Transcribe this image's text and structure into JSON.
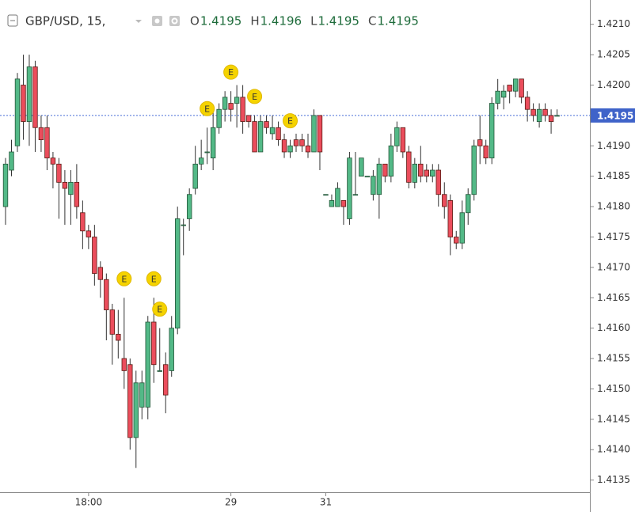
{
  "chart_data": {
    "type": "candlestick",
    "title": "GBP/USD, 15,",
    "ohlc_header": [
      {
        "label": "O",
        "value": 1.4195
      },
      {
        "label": "H",
        "value": 1.4196
      },
      {
        "label": "L",
        "value": 1.4195
      },
      {
        "label": "C",
        "value": 1.4195
      }
    ],
    "categories": [
      null,
      null,
      null,
      null,
      null,
      null,
      null,
      null,
      null,
      null,
      null,
      null,
      null,
      null,
      "18:00",
      null,
      null,
      null,
      null,
      null,
      null,
      null,
      null,
      null,
      null,
      null,
      null,
      null,
      null,
      null,
      null,
      null,
      null,
      null,
      null,
      null,
      null,
      null,
      "29",
      null,
      null,
      null,
      null,
      null,
      null,
      null,
      null,
      null,
      null,
      null,
      null,
      null,
      null,
      null,
      "31",
      null,
      null,
      null,
      null,
      null,
      null,
      null,
      null,
      null,
      null,
      null,
      null,
      null,
      null,
      null,
      null,
      null,
      null,
      null,
      null,
      null,
      null,
      null,
      null,
      null,
      null,
      null,
      null,
      null,
      null,
      null,
      null,
      null,
      null,
      null,
      null,
      null,
      null,
      null
    ],
    "open": [
      1.418,
      1.4186,
      1.419,
      1.42,
      1.4194,
      1.4203,
      1.4193,
      1.4193,
      1.4188,
      1.4187,
      1.4184,
      1.4182,
      1.4184,
      1.4179,
      1.4176,
      1.4175,
      1.417,
      1.4168,
      1.4163,
      1.4159,
      1.4155,
      1.4154,
      1.4142,
      1.4147,
      1.4147,
      1.4161,
      1.4153,
      1.4154,
      1.4153,
      1.416,
      1.4177,
      1.4178,
      1.4183,
      1.4187,
      1.4189,
      1.4188,
      1.4193,
      1.4196,
      1.4197,
      1.4197,
      1.4198,
      1.4195,
      1.4194,
      1.4189,
      1.4194,
      1.4192,
      1.4193,
      1.4191,
      1.4189,
      1.4191,
      1.4191,
      1.419,
      1.4189,
      1.4195,
      1.4182,
      1.418,
      1.418,
      1.4181,
      1.4178,
      1.4182,
      1.4185,
      1.4185,
      1.4182,
      1.4182,
      1.4187,
      1.4185,
      1.419,
      1.4193,
      1.4189,
      1.4184,
      1.4187,
      1.4186,
      1.4185,
      1.4186,
      1.4182,
      1.4181,
      1.4175,
      1.4174,
      1.4179,
      1.4182,
      1.4191,
      1.419,
      1.4188,
      1.4197,
      1.4198,
      1.42,
      1.4199,
      1.4201,
      1.4198,
      1.4196,
      1.4194,
      1.4196,
      1.4195,
      1.4195
    ],
    "high": [
      1.4188,
      1.4191,
      1.4202,
      1.4205,
      1.4205,
      1.4204,
      1.4195,
      1.4195,
      1.4189,
      1.4188,
      1.4186,
      1.4186,
      1.4187,
      1.4181,
      1.4177,
      1.4177,
      1.4171,
      1.4169,
      1.4164,
      1.4163,
      1.4165,
      1.4155,
      1.4153,
      1.4153,
      1.4162,
      1.4165,
      1.416,
      1.4156,
      1.4162,
      1.418,
      1.4178,
      1.4183,
      1.419,
      1.4191,
      1.4193,
      1.4196,
      1.4197,
      1.4199,
      1.4199,
      1.42,
      1.42,
      1.4195,
      1.4195,
      1.4195,
      1.4195,
      1.4195,
      1.4194,
      1.4192,
      1.4191,
      1.4192,
      1.4192,
      1.4192,
      1.4196,
      1.4195,
      1.4182,
      1.4182,
      1.4184,
      1.4181,
      1.4189,
      1.4189,
      1.4188,
      1.4185,
      1.4186,
      1.4188,
      1.4187,
      1.4192,
      1.4194,
      1.4193,
      1.419,
      1.4188,
      1.419,
      1.4187,
      1.4187,
      1.4187,
      1.4184,
      1.4182,
      1.4176,
      1.4181,
      1.4183,
      1.4191,
      1.4195,
      1.4191,
      1.4198,
      1.4201,
      1.42,
      1.42,
      1.4201,
      1.4201,
      1.4199,
      1.4197,
      1.4197,
      1.4197,
      1.4196,
      1.4196
    ],
    "low": [
      1.4177,
      1.4185,
      1.4189,
      1.4191,
      1.419,
      1.4189,
      1.4189,
      1.4186,
      1.4183,
      1.4178,
      1.4177,
      1.4177,
      1.4178,
      1.4173,
      1.4173,
      1.4167,
      1.4165,
      1.4158,
      1.4154,
      1.4155,
      1.415,
      1.414,
      1.4137,
      1.4145,
      1.4145,
      1.4151,
      1.4153,
      1.4146,
      1.4152,
      1.4159,
      1.4172,
      1.4176,
      1.4182,
      1.4186,
      1.4187,
      1.4186,
      1.4192,
      1.4194,
      1.4194,
      1.4193,
      1.4192,
      1.4193,
      1.4189,
      1.4189,
      1.4192,
      1.4191,
      1.419,
      1.4188,
      1.4188,
      1.4189,
      1.4189,
      1.4188,
      1.4189,
      1.4186,
      1.4182,
      1.418,
      1.418,
      1.4177,
      1.4177,
      1.4182,
      1.4185,
      1.4185,
      1.4181,
      1.4178,
      1.4184,
      1.4184,
      1.4189,
      1.4188,
      1.4183,
      1.4183,
      1.4184,
      1.4184,
      1.4184,
      1.418,
      1.4178,
      1.4172,
      1.4173,
      1.4173,
      1.4177,
      1.4181,
      1.4187,
      1.4187,
      1.4187,
      1.4196,
      1.4196,
      1.4197,
      1.4198,
      1.4197,
      1.4194,
      1.4194,
      1.4193,
      1.4194,
      1.4192,
      1.4195
    ],
    "close": [
      1.4187,
      1.4189,
      1.4201,
      1.4194,
      1.4203,
      1.4193,
      1.4191,
      1.4188,
      1.4187,
      1.4184,
      1.4183,
      1.4184,
      1.418,
      1.4176,
      1.4175,
      1.4169,
      1.4168,
      1.4163,
      1.4159,
      1.4158,
      1.4153,
      1.4142,
      1.4151,
      1.4151,
      1.4161,
      1.4154,
      1.4153,
      1.4149,
      1.416,
      1.4178,
      1.4177,
      1.4182,
      1.4187,
      1.4188,
      1.4189,
      1.4193,
      1.4196,
      1.4198,
      1.4196,
      1.4198,
      1.4194,
      1.4194,
      1.4189,
      1.4194,
      1.4193,
      1.4193,
      1.4191,
      1.4189,
      1.419,
      1.419,
      1.419,
      1.4189,
      1.4195,
      1.4189,
      1.4182,
      1.4181,
      1.4183,
      1.418,
      1.4188,
      1.4182,
      1.4188,
      1.4185,
      1.4185,
      1.4187,
      1.4185,
      1.419,
      1.4193,
      1.4189,
      1.4184,
      1.4187,
      1.4185,
      1.4185,
      1.4186,
      1.4182,
      1.418,
      1.4175,
      1.4174,
      1.4179,
      1.4182,
      1.419,
      1.419,
      1.4188,
      1.4197,
      1.4199,
      1.4199,
      1.4199,
      1.4201,
      1.4198,
      1.4196,
      1.4195,
      1.4196,
      1.4195,
      1.4194,
      1.4195
    ],
    "up_color": "#53b987",
    "down_color": "#eb4d5c",
    "events": [
      {
        "index": 20,
        "label": "E"
      },
      {
        "index": 25,
        "label": "E"
      },
      {
        "index": 26,
        "label": "E"
      },
      {
        "index": 34,
        "label": "E"
      },
      {
        "index": 38,
        "label": "E"
      },
      {
        "index": 42,
        "label": "E"
      },
      {
        "index": 48,
        "label": "E"
      }
    ],
    "last_price": 1.4195,
    "ylim": [
      1.4133,
      1.4214
    ],
    "yticks": [
      1.4135,
      {
        "value": 1.414,
        "label": "1.4140"
      },
      1.4145,
      {
        "value": 1.415,
        "label": "1.4150"
      },
      1.4155,
      {
        "value": 1.416,
        "label": "1.4160"
      },
      1.4165,
      {
        "value": 1.417,
        "label": "1.4170"
      },
      1.4175,
      {
        "value": 1.418,
        "label": "1.4180"
      },
      1.4185,
      {
        "value": 1.419,
        "label": "1.4190"
      },
      1.4195,
      {
        "value": 1.42,
        "label": "1.4200"
      },
      1.4205,
      {
        "value": 1.421,
        "label": "1.4210"
      }
    ]
  }
}
